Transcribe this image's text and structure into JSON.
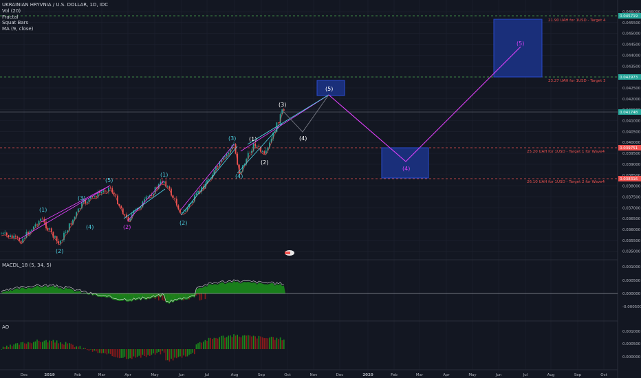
{
  "header": {
    "title": "UKRAINIAN HRYVNIA / U.S. DOLLAR, 1D, IDC",
    "indicators": [
      "Vol (20)",
      "Fractal",
      "Squat Bars",
      "MA (9, close)"
    ]
  },
  "price_axis": {
    "ticks": [
      "0.046000",
      "0.045500",
      "0.045000",
      "0.044500",
      "0.044000",
      "0.043500",
      "0.043000",
      "0.042500",
      "0.042000",
      "0.041500",
      "0.041000",
      "0.040500",
      "0.040000",
      "0.039500",
      "0.039000",
      "0.038500",
      "0.038000",
      "0.037500",
      "0.037000",
      "0.036500",
      "0.036000",
      "0.035500",
      "0.035000"
    ],
    "badges": [
      {
        "text": "0.045719",
        "color": "#26a69a"
      },
      {
        "text": "0.042973",
        "color": "#26a69a"
      },
      {
        "text": "0.041748",
        "color": "#26a69a"
      },
      {
        "text": "0.039751",
        "color": "#ef5350"
      },
      {
        "text": "0.038316",
        "color": "#ef5350"
      }
    ]
  },
  "time_axis": [
    "Dec",
    "2019",
    "Feb",
    "Mar",
    "Apr",
    "May",
    "Jun",
    "Jul",
    "Aug",
    "Sep",
    "Oct",
    "Nov",
    "Dec",
    "2020",
    "Feb",
    "Mar",
    "Apr",
    "May",
    "Jun",
    "Jul",
    "Aug",
    "Sep",
    "Oct"
  ],
  "targets": [
    {
      "text": "21.90 UAH  for  1USD  - Target 4"
    },
    {
      "text": "23.27 UAH  for  1USD  - Target 3"
    },
    {
      "text": "25.20 UAH  for  1USD  - Target 1 for Wave4"
    },
    {
      "text": "26.10 UAH  for  1USD  - Target 2 for Wave4"
    }
  ],
  "waves": {
    "cyan": [
      "(1)",
      "(2)",
      "(3)",
      "(4)",
      "(5)",
      "(1)",
      "(2)",
      "(3)",
      "(4)"
    ],
    "magenta": [
      "(2)"
    ],
    "white": [
      "(1)",
      "(2)",
      "(3)",
      "(4)"
    ],
    "projection": [
      "(5)",
      "(4)",
      "(5)"
    ]
  },
  "macd": {
    "title": "MACDL_18 (5, 34, 5)",
    "ticks": [
      "0.001000",
      "0.000500",
      "0.000000",
      "-0.000500"
    ]
  },
  "ao": {
    "title": "AO",
    "ticks": [
      "0.001000",
      "0.000500",
      "0.000000",
      "-0.000500"
    ]
  },
  "colors": {
    "background": "#131722",
    "up": "#26a69a",
    "down": "#ef5350",
    "channel": "#e040fb",
    "box": "#1a3a8f",
    "macd_fill": "#1b8a1b"
  }
}
